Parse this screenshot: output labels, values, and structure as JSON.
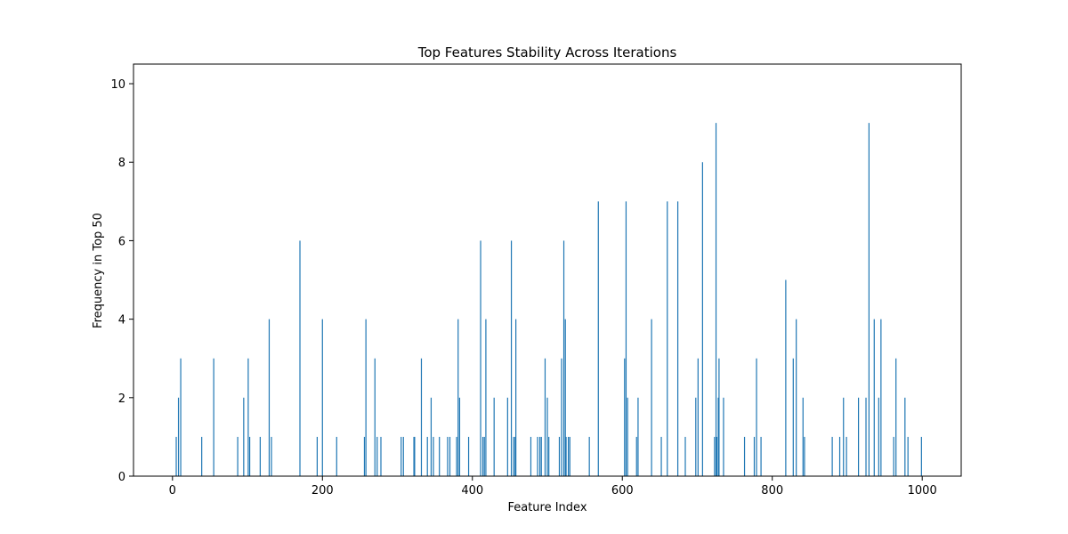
{
  "chart_data": {
    "type": "bar",
    "title": "Top Features Stability Across Iterations",
    "xlabel": "Feature Index",
    "ylabel": "Frequency in Top 50",
    "xlim": [
      -52,
      1052
    ],
    "ylim": [
      0,
      10.5
    ],
    "xticks": [
      0,
      200,
      400,
      600,
      800,
      1000
    ],
    "yticks": [
      0,
      2,
      4,
      6,
      8,
      10
    ],
    "grid": false,
    "bar_color": "#1f77b4",
    "x": [
      5,
      8,
      11,
      39,
      55,
      87,
      95,
      101,
      103,
      117,
      129,
      132,
      170,
      193,
      200,
      219,
      256,
      258,
      270,
      273,
      278,
      305,
      308,
      322,
      323,
      332,
      340,
      345,
      348,
      356,
      367,
      370,
      379,
      381,
      383,
      395,
      411,
      414,
      416,
      418,
      429,
      447,
      452,
      455,
      457,
      458,
      478,
      487,
      490,
      492,
      497,
      500,
      502,
      516,
      519,
      522,
      524,
      525,
      528,
      530,
      556,
      568,
      603,
      605,
      607,
      619,
      621,
      639,
      652,
      660,
      674,
      684,
      698,
      701,
      707,
      723,
      725,
      726,
      728,
      729,
      735,
      763,
      776,
      779,
      785,
      818,
      828,
      832,
      841,
      843,
      880,
      890,
      895,
      899,
      915,
      925,
      929,
      936,
      942,
      945,
      962,
      965,
      977,
      981,
      999
    ],
    "values": [
      1,
      2,
      3,
      1,
      3,
      1,
      2,
      3,
      1,
      1,
      4,
      1,
      6,
      1,
      4,
      1,
      1,
      4,
      3,
      1,
      1,
      1,
      1,
      1,
      1,
      3,
      1,
      2,
      1,
      1,
      1,
      1,
      1,
      4,
      2,
      1,
      6,
      1,
      1,
      4,
      2,
      2,
      6,
      1,
      1,
      4,
      1,
      1,
      1,
      1,
      3,
      2,
      1,
      1,
      3,
      6,
      4,
      1,
      1,
      1,
      1,
      7,
      3,
      7,
      2,
      1,
      2,
      4,
      1,
      7,
      7,
      1,
      2,
      3,
      8,
      1,
      9,
      1,
      2,
      3,
      2,
      1,
      1,
      3,
      1,
      5,
      3,
      4,
      2,
      1,
      1,
      1,
      2,
      1,
      2,
      2,
      9,
      4,
      2,
      4,
      1,
      3,
      2,
      1,
      1
    ]
  }
}
